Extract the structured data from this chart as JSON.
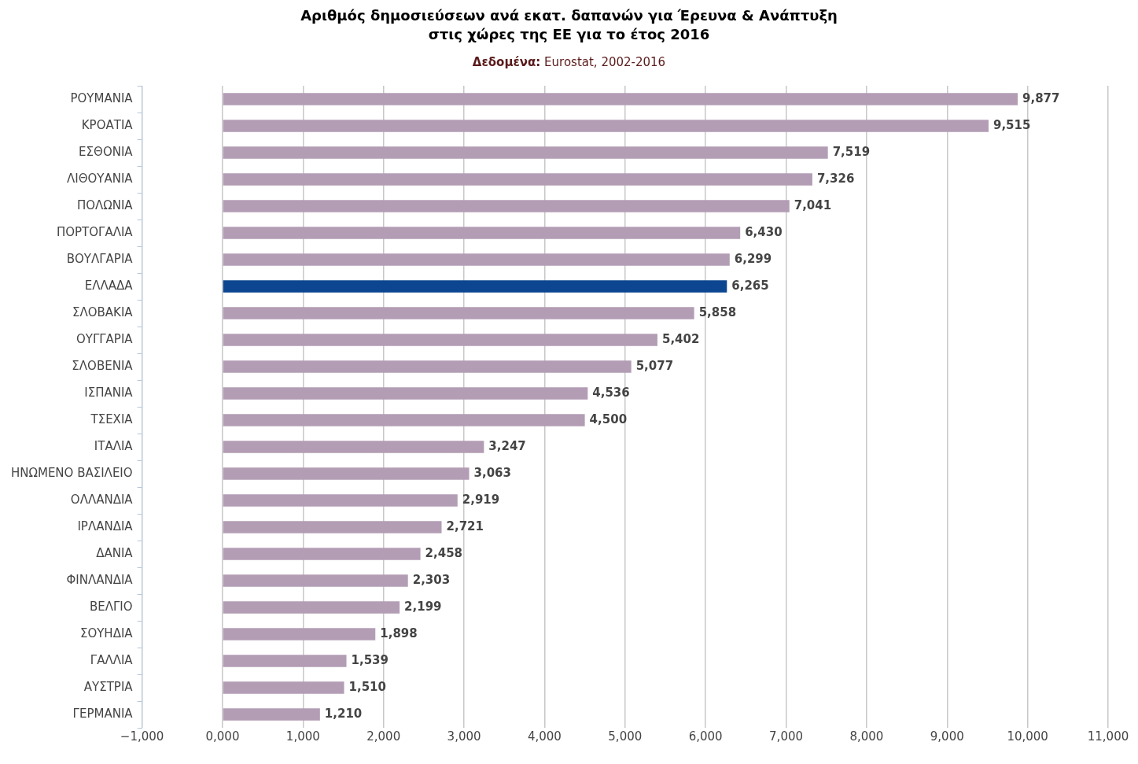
{
  "chart_data": {
    "type": "bar",
    "orientation": "horizontal",
    "title": "Αριθμός δημοσιεύσεων ανά εκατ. δαπανών για Έρευνα & Ανάπτυξη\nστις χώρες της ΕΕ για το έτος 2016",
    "subtitle": "Δεδομένα: Eurostat, 2002-2016",
    "categories": [
      "ΡΟΥΜΑΝΙΑ",
      "ΚΡΟΑΤΙΑ",
      "ΕΣΘΟΝΙΑ",
      "ΛΙΘΟΥΑΝΙΑ",
      "ΠΟΛΩΝΙΑ",
      "ΠΟΡΤΟΓΑΛΙΑ",
      "ΒΟΥΛΓΑΡΙΑ",
      "ΕΛΛΑΔΑ",
      "ΣΛΟΒΑΚΙΑ",
      "ΟΥΓΓΑΡΙΑ",
      "ΣΛΟΒΕΝΙΑ",
      "ΙΣΠΑΝΙΑ",
      "ΤΣΕΧΙΑ",
      "ΙΤΑΛΙΑ",
      "ΗΝΩΜΕΝΟ ΒΑΣΙΛΕΙΟ",
      "ΟΛΛΑΝΔΙΑ",
      "ΙΡΛΑΝΔΙΑ",
      "ΔΑΝΙΑ",
      "ΦΙΝΛΑΝΔΙΑ",
      "ΒΕΛΓΙΟ",
      "ΣΟΥΗΔΙΑ",
      "ΓΑΛΛΙΑ",
      "ΑΥΣΤΡΙΑ",
      "ΓΕΡΜΑΝΙΑ"
    ],
    "values": [
      9877,
      9515,
      7519,
      7326,
      7041,
      6430,
      6299,
      6265,
      5858,
      5402,
      5077,
      4536,
      4500,
      3247,
      3063,
      2919,
      2721,
      2458,
      2303,
      2199,
      1898,
      1539,
      1510,
      1210
    ],
    "colors": [
      "#b39db5",
      "#b39db5",
      "#b39db5",
      "#b39db5",
      "#b39db5",
      "#b39db5",
      "#b39db5",
      "#0d4690",
      "#b39db5",
      "#b39db5",
      "#b39db5",
      "#b39db5",
      "#b39db5",
      "#b39db5",
      "#b39db5",
      "#b39db5",
      "#b39db5",
      "#b39db5",
      "#b39db5",
      "#b39db5",
      "#b39db5",
      "#b39db5",
      "#b39db5",
      "#b39db5"
    ],
    "xlim": [
      -1000,
      11000
    ],
    "xticks": [
      {
        "value": -1000,
        "label": "−1,000"
      },
      {
        "value": 0,
        "label": "0,000"
      },
      {
        "value": 1000,
        "label": "1,000"
      },
      {
        "value": 2000,
        "label": "2,000"
      },
      {
        "value": 3000,
        "label": "3,000"
      },
      {
        "value": 4000,
        "label": "4,000"
      },
      {
        "value": 5000,
        "label": "5,000"
      },
      {
        "value": 6000,
        "label": "6,000"
      },
      {
        "value": 7000,
        "label": "7,000"
      },
      {
        "value": 8000,
        "label": "8,000"
      },
      {
        "value": 9000,
        "label": "9,000"
      },
      {
        "value": 10000,
        "label": "10,000"
      },
      {
        "value": 11000,
        "label": "11,000"
      }
    ],
    "value_labels": [
      "9,877",
      "9,515",
      "7,519",
      "7,326",
      "7,041",
      "6,430",
      "6,299",
      "6,265",
      "5,858",
      "5,402",
      "5,077",
      "4,536",
      "4,500",
      "3,247",
      "3,063",
      "2,919",
      "2,721",
      "2,458",
      "2,303",
      "2,199",
      "1,898",
      "1,539",
      "1,510",
      "1,210"
    ],
    "grid": "x",
    "legend": false
  }
}
